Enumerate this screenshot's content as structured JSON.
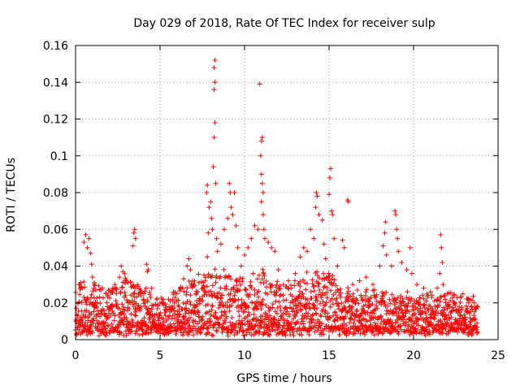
{
  "chart_data": {
    "type": "scatter",
    "title": "Day 029 of 2018, Rate Of TEC Index for receiver sulp",
    "xlabel": "GPS time / hours",
    "ylabel": "ROTI / TECUs",
    "xlim": [
      0,
      25
    ],
    "ylim": [
      0,
      0.16
    ],
    "xticks": [
      0,
      5,
      10,
      15,
      20,
      25
    ],
    "yticks": [
      0,
      0.02,
      0.04,
      0.06,
      0.08,
      0.1,
      0.12,
      0.14,
      0.16
    ],
    "xtick_labels": [
      "0",
      "5",
      "10",
      "15",
      "20",
      "25"
    ],
    "ytick_labels": [
      "0",
      "0.02",
      "0.04",
      "0.06",
      "0.08",
      "0.1",
      "0.12",
      "0.14",
      "0.16"
    ],
    "grid": true,
    "marker": "+",
    "color": "#ff0000",
    "series": [
      {
        "name": "ROTI",
        "points": [
          [
            0.6,
            0.057
          ],
          [
            0.5,
            0.053
          ],
          [
            0.7,
            0.05
          ],
          [
            0.8,
            0.055
          ],
          [
            0.9,
            0.047
          ],
          [
            0.95,
            0.041
          ],
          [
            0.3,
            0.031
          ],
          [
            0.4,
            0.028
          ],
          [
            0.2,
            0.03
          ],
          [
            1.0,
            0.034
          ],
          [
            1.1,
            0.031
          ],
          [
            1.2,
            0.027
          ],
          [
            1.5,
            0.027
          ],
          [
            1.8,
            0.025
          ],
          [
            2.1,
            0.026
          ],
          [
            2.4,
            0.028
          ],
          [
            2.6,
            0.034
          ],
          [
            2.7,
            0.04
          ],
          [
            2.8,
            0.037
          ],
          [
            2.9,
            0.036
          ],
          [
            3.0,
            0.032
          ],
          [
            3.1,
            0.031
          ],
          [
            3.5,
            0.06
          ],
          [
            3.45,
            0.058
          ],
          [
            3.4,
            0.051
          ],
          [
            3.55,
            0.055
          ],
          [
            3.7,
            0.029
          ],
          [
            3.9,
            0.026
          ],
          [
            4.2,
            0.041
          ],
          [
            4.25,
            0.037
          ],
          [
            4.3,
            0.038
          ],
          [
            4.5,
            0.028
          ],
          [
            4.8,
            0.022
          ],
          [
            5.2,
            0.02
          ],
          [
            5.6,
            0.021
          ],
          [
            6.0,
            0.025
          ],
          [
            6.2,
            0.028
          ],
          [
            6.4,
            0.033
          ],
          [
            6.6,
            0.04
          ],
          [
            6.7,
            0.044
          ],
          [
            6.8,
            0.038
          ],
          [
            7.0,
            0.03
          ],
          [
            7.3,
            0.031
          ],
          [
            7.6,
            0.035
          ],
          [
            7.8,
            0.045
          ],
          [
            7.85,
            0.058
          ],
          [
            7.9,
            0.072
          ],
          [
            7.8,
            0.084
          ],
          [
            7.75,
            0.08
          ],
          [
            8.0,
            0.075
          ],
          [
            8.05,
            0.066
          ],
          [
            8.1,
            0.06
          ],
          [
            8.15,
            0.094
          ],
          [
            8.2,
            0.11
          ],
          [
            8.25,
            0.118
          ],
          [
            8.2,
            0.136
          ],
          [
            8.25,
            0.14
          ],
          [
            8.2,
            0.148
          ],
          [
            8.25,
            0.152
          ],
          [
            8.3,
            0.085
          ],
          [
            8.35,
            0.055
          ],
          [
            8.4,
            0.048
          ],
          [
            8.6,
            0.052
          ],
          [
            8.8,
            0.06
          ],
          [
            9.0,
            0.066
          ],
          [
            9.1,
            0.085
          ],
          [
            9.15,
            0.08
          ],
          [
            9.2,
            0.072
          ],
          [
            9.3,
            0.068
          ],
          [
            9.4,
            0.08
          ],
          [
            9.5,
            0.062
          ],
          [
            9.6,
            0.05
          ],
          [
            9.8,
            0.04
          ],
          [
            10.0,
            0.046
          ],
          [
            10.2,
            0.05
          ],
          [
            10.4,
            0.055
          ],
          [
            10.6,
            0.062
          ],
          [
            10.8,
            0.06
          ],
          [
            10.9,
            0.139
          ],
          [
            10.95,
            0.1
          ],
          [
            11.0,
            0.108
          ],
          [
            11.05,
            0.11
          ],
          [
            11.0,
            0.09
          ],
          [
            11.05,
            0.085
          ],
          [
            11.1,
            0.08
          ],
          [
            11.0,
            0.075
          ],
          [
            11.1,
            0.068
          ],
          [
            11.15,
            0.06
          ],
          [
            11.2,
            0.055
          ],
          [
            11.4,
            0.053
          ],
          [
            11.6,
            0.05
          ],
          [
            11.8,
            0.048
          ],
          [
            12.0,
            0.038
          ],
          [
            12.3,
            0.03
          ],
          [
            12.6,
            0.032
          ],
          [
            13.0,
            0.036
          ],
          [
            13.3,
            0.045
          ],
          [
            13.5,
            0.05
          ],
          [
            13.7,
            0.048
          ],
          [
            13.9,
            0.06
          ],
          [
            14.1,
            0.055
          ],
          [
            14.2,
            0.072
          ],
          [
            14.25,
            0.08
          ],
          [
            14.3,
            0.078
          ],
          [
            14.4,
            0.068
          ],
          [
            14.6,
            0.065
          ],
          [
            14.7,
            0.052
          ],
          [
            14.8,
            0.044
          ],
          [
            15.0,
            0.079
          ],
          [
            15.05,
            0.088
          ],
          [
            15.1,
            0.093
          ],
          [
            15.15,
            0.07
          ],
          [
            15.2,
            0.068
          ],
          [
            15.3,
            0.055
          ],
          [
            15.5,
            0.04
          ],
          [
            15.8,
            0.054
          ],
          [
            15.9,
            0.05
          ],
          [
            16.1,
            0.076
          ],
          [
            16.15,
            0.075
          ],
          [
            16.4,
            0.03
          ],
          [
            16.8,
            0.032
          ],
          [
            17.2,
            0.034
          ],
          [
            17.6,
            0.03
          ],
          [
            18.0,
            0.04
          ],
          [
            18.2,
            0.051
          ],
          [
            18.3,
            0.058
          ],
          [
            18.35,
            0.064
          ],
          [
            18.4,
            0.046
          ],
          [
            18.7,
            0.04
          ],
          [
            18.9,
            0.07
          ],
          [
            18.95,
            0.068
          ],
          [
            19.0,
            0.06
          ],
          [
            19.05,
            0.055
          ],
          [
            19.1,
            0.048
          ],
          [
            19.3,
            0.042
          ],
          [
            19.6,
            0.038
          ],
          [
            19.8,
            0.05
          ],
          [
            19.9,
            0.036
          ],
          [
            20.2,
            0.03
          ],
          [
            20.6,
            0.028
          ],
          [
            21.0,
            0.026
          ],
          [
            21.4,
            0.028
          ],
          [
            21.6,
            0.057
          ],
          [
            21.65,
            0.05
          ],
          [
            21.7,
            0.042
          ],
          [
            21.55,
            0.036
          ],
          [
            21.75,
            0.03
          ],
          [
            22.0,
            0.025
          ],
          [
            22.4,
            0.024
          ],
          [
            22.8,
            0.023
          ],
          [
            23.2,
            0.022
          ],
          [
            23.6,
            0.02
          ],
          [
            23.8,
            0.018
          ]
        ],
        "band_samples_per_hour": 90,
        "band_envelope": [
          [
            0,
            0.028
          ],
          [
            1,
            0.03
          ],
          [
            2,
            0.026
          ],
          [
            3,
            0.032
          ],
          [
            4,
            0.026
          ],
          [
            5,
            0.02
          ],
          [
            6,
            0.024
          ],
          [
            7,
            0.03
          ],
          [
            8,
            0.036
          ],
          [
            9,
            0.034
          ],
          [
            10,
            0.032
          ],
          [
            11,
            0.036
          ],
          [
            12,
            0.03
          ],
          [
            13,
            0.03
          ],
          [
            14,
            0.036
          ],
          [
            15,
            0.034
          ],
          [
            16,
            0.026
          ],
          [
            17,
            0.024
          ],
          [
            18,
            0.024
          ],
          [
            19,
            0.024
          ],
          [
            20,
            0.022
          ],
          [
            21,
            0.022
          ],
          [
            22,
            0.022
          ],
          [
            23,
            0.022
          ],
          [
            23.8,
            0.02
          ]
        ],
        "band_floor": 0.002
      }
    ]
  }
}
